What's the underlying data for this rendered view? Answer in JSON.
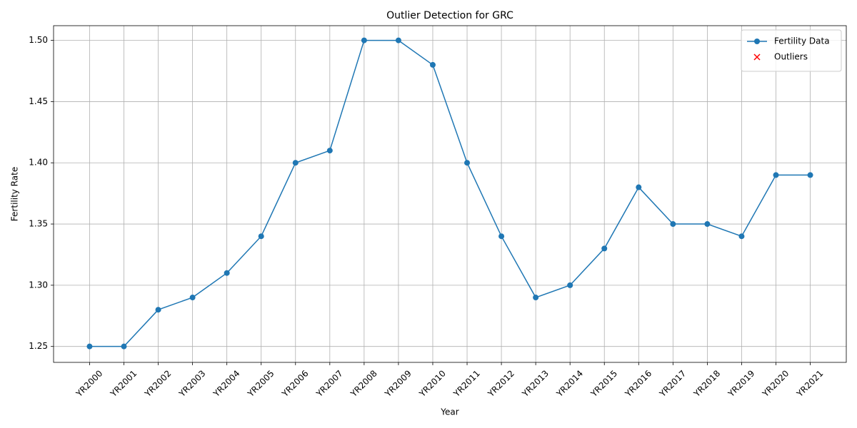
{
  "chart_data": {
    "type": "line",
    "title": "Outlier Detection for GRC",
    "xlabel": "Year",
    "ylabel": "Fertility Rate",
    "categories": [
      "YR2000",
      "YR2001",
      "YR2002",
      "YR2003",
      "YR2004",
      "YR2005",
      "YR2006",
      "YR2007",
      "YR2008",
      "YR2009",
      "YR2010",
      "YR2011",
      "YR2012",
      "YR2013",
      "YR2014",
      "YR2015",
      "YR2016",
      "YR2017",
      "YR2018",
      "YR2019",
      "YR2020",
      "YR2021"
    ],
    "series": [
      {
        "name": "Fertility Data",
        "color": "#1f77b4",
        "marker": "o",
        "values": [
          1.25,
          1.25,
          1.28,
          1.29,
          1.31,
          1.34,
          1.4,
          1.41,
          1.5,
          1.5,
          1.48,
          1.4,
          1.34,
          1.29,
          1.3,
          1.33,
          1.38,
          1.35,
          1.35,
          1.34,
          1.39,
          1.39
        ]
      },
      {
        "name": "Outliers",
        "color": "#ff0000",
        "marker": "x",
        "values": [
          null,
          null,
          null,
          null,
          null,
          null,
          null,
          null,
          null,
          null,
          null,
          null,
          null,
          null,
          null,
          null,
          null,
          null,
          null,
          null,
          null,
          null
        ]
      }
    ],
    "ylim": [
      1.237,
      1.512
    ],
    "yticks": [
      1.25,
      {
        "value": 1.3,
        "label": "1.30"
      },
      1.35,
      {
        "value": 1.4,
        "label": "1.40"
      },
      1.45,
      {
        "value": 1.5,
        "label": "1.50"
      }
    ],
    "grid": true,
    "legend": "upper right"
  }
}
